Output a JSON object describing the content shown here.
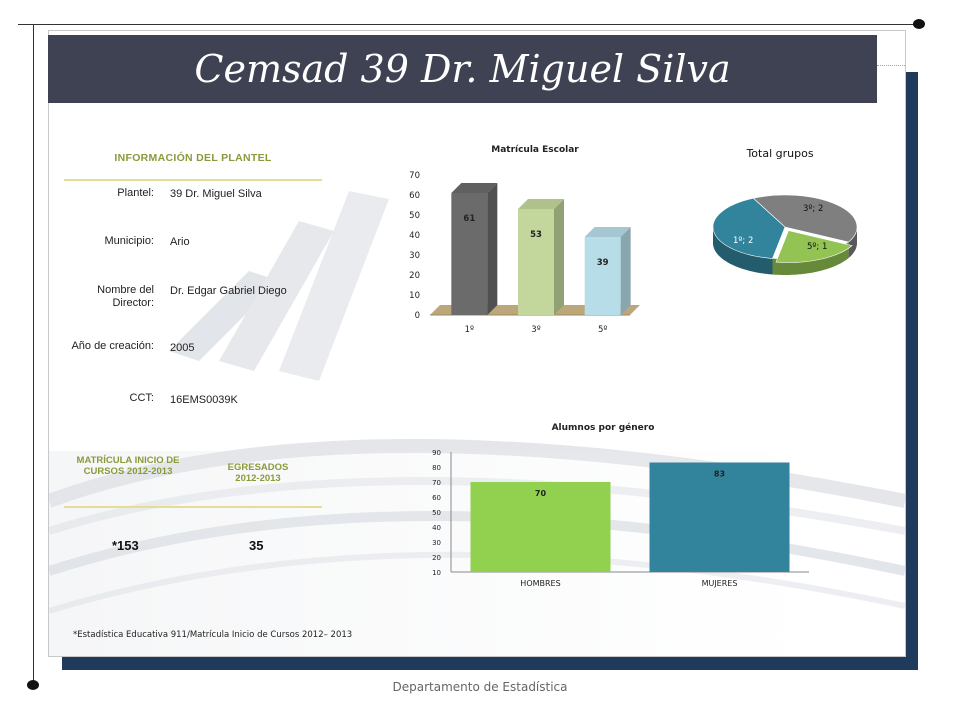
{
  "title": "Cemsad 39 Dr. Miguel Silva",
  "info": {
    "heading": "INFORMACIÓN DEL PLANTEL",
    "rows": [
      {
        "label": "Plantel:",
        "value": "39 Dr. Miguel Silva"
      },
      {
        "label": "Municipio:",
        "value": "Ario"
      },
      {
        "label": "Nombre del Director:",
        "value": "Dr. Edgar Gabriel Diego"
      },
      {
        "label": "Año de creación:",
        "value": "2005"
      },
      {
        "label": "CCT:",
        "value": "16EMS0039K"
      }
    ]
  },
  "stats": {
    "matricula_heading": "MATRÍCULA INICIO DE CURSOS 2012-2013",
    "egresados_heading": "EGRESADOS 2012-2013",
    "matricula_value": "*153",
    "egresados_value": "35"
  },
  "footnote": "*Estadística Educativa 911/Matrícula Inicio de Cursos 2012– 2013",
  "department": "Departamento de Estadística",
  "colors": {
    "title_bar": "#3f4253",
    "frame": "#1f3a5a",
    "accent_text": "#8a9a3a",
    "divider": "#e7dc93"
  },
  "chart_data": [
    {
      "type": "bar",
      "title": "Matrícula Escolar",
      "categories": [
        "1º",
        "3º",
        "5º"
      ],
      "values": [
        61,
        53,
        39
      ],
      "data_labels": [
        "61",
        "53",
        "39"
      ],
      "ylim": [
        0,
        70
      ],
      "yticks": [
        "0",
        "10",
        "20",
        "30",
        "40",
        "50",
        "60",
        "70"
      ],
      "colors": [
        "#6b6b6b",
        "#c3d69b",
        "#b7dde8"
      ],
      "three_d": true
    },
    {
      "type": "pie",
      "title": "Total grupos",
      "labels": [
        "1º; 2",
        "3º; 2",
        "5º; 1"
      ],
      "categories": [
        "1º",
        "3º",
        "5º"
      ],
      "values": [
        2,
        2,
        1
      ],
      "colors": [
        "#31849b",
        "#7f7f7f",
        "#92c353"
      ],
      "three_d": true
    },
    {
      "type": "bar",
      "title": "Alumnos por género",
      "categories": [
        "HOMBRES",
        "MUJERES"
      ],
      "values": [
        70,
        83
      ],
      "data_labels": [
        "70",
        "83"
      ],
      "ylim": [
        10,
        90
      ],
      "yticks": [
        "10",
        "20",
        "30",
        "40",
        "50",
        "60",
        "70",
        "80",
        "90"
      ],
      "colors": [
        "#92d050",
        "#31849b"
      ]
    }
  ]
}
